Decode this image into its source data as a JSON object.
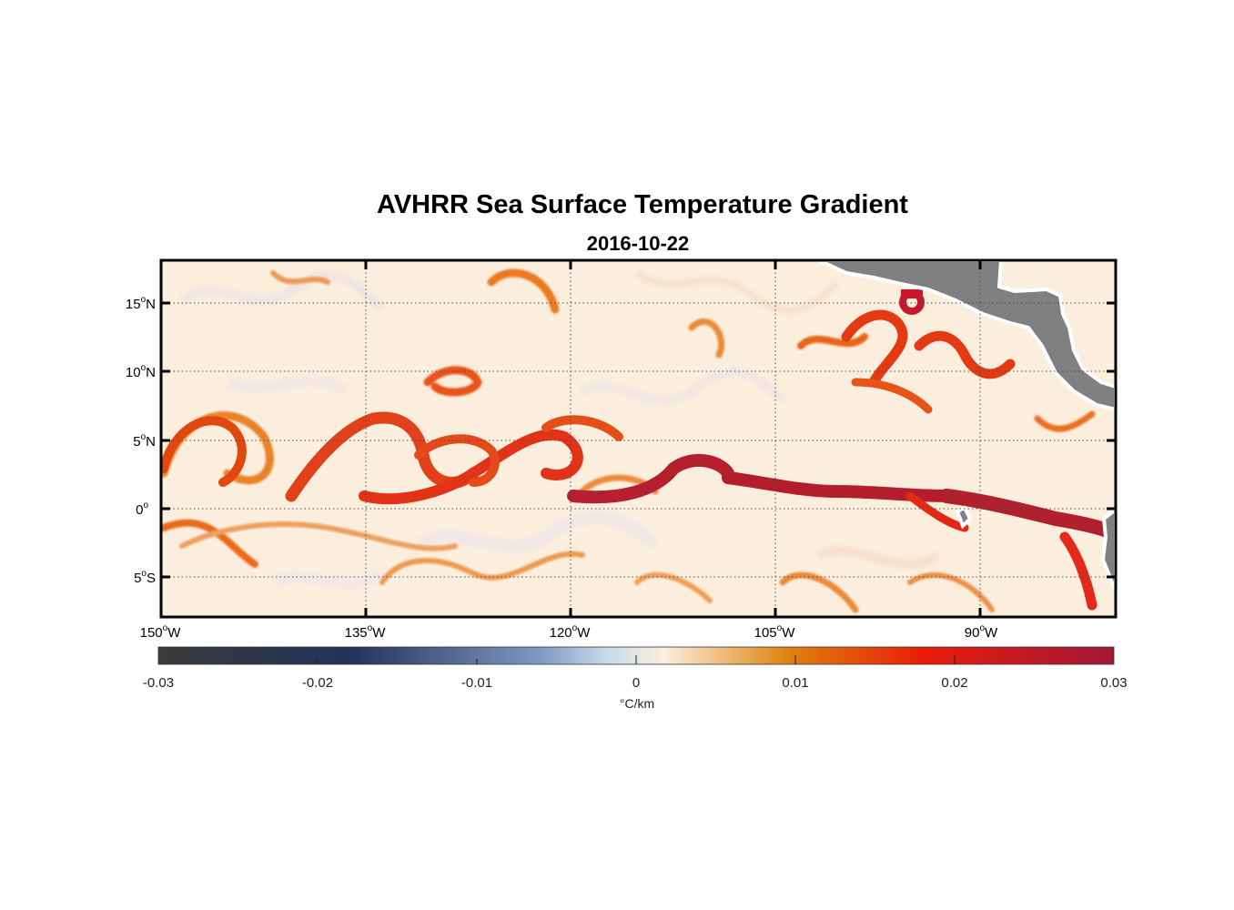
{
  "title": "AVHRR Sea Surface Temperature Gradient",
  "subtitle": "2016-10-22",
  "map": {
    "lon_range": [
      -150,
      -80
    ],
    "lat_range": [
      -8,
      18
    ],
    "lon_ticks": [
      {
        "value": -150,
        "label": "150",
        "sup": "o",
        "hemi": "W"
      },
      {
        "value": -135,
        "label": "135",
        "sup": "o",
        "hemi": "W"
      },
      {
        "value": -120,
        "label": "120",
        "sup": "o",
        "hemi": "W"
      },
      {
        "value": -105,
        "label": "105",
        "sup": "o",
        "hemi": "W"
      },
      {
        "value": -90,
        "label": "90",
        "sup": "o",
        "hemi": "W"
      }
    ],
    "lat_ticks": [
      {
        "value": 15,
        "label": "15",
        "sup": "o",
        "hemi": "N"
      },
      {
        "value": 10,
        "label": "10",
        "sup": "o",
        "hemi": "N"
      },
      {
        "value": 5,
        "label": "5",
        "sup": "o",
        "hemi": "N"
      },
      {
        "value": 0,
        "label": "0",
        "sup": "o",
        "hemi": ""
      },
      {
        "value": -5,
        "label": "5",
        "sup": "o",
        "hemi": "S"
      }
    ],
    "grid": "dotted",
    "land_color": "#808080",
    "ocean_background": "#fbeedd"
  },
  "colorbar": {
    "min": -0.03,
    "max": 0.03,
    "ticks": [
      "-0.03",
      "-0.02",
      "-0.01",
      "0",
      "0.01",
      "0.02",
      "0.03"
    ],
    "label": "°C/km",
    "colors": [
      "#3b3b3b",
      "#22325a",
      "#a8bfdc",
      "#fbeedd",
      "#e0820c",
      "#ea1c0a",
      "#a01838"
    ]
  }
}
